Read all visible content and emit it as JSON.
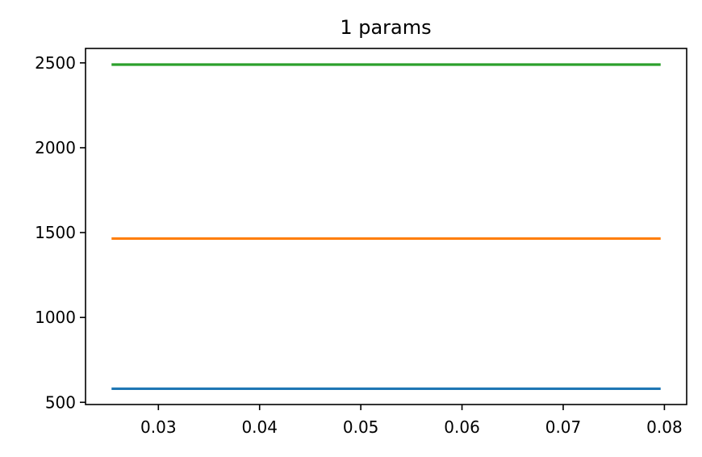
{
  "chart_data": {
    "type": "line",
    "title": "1 params",
    "xlabel": "",
    "ylabel": "",
    "xlim": [
      0.0228,
      0.0822
    ],
    "ylim": [
      487,
      2585
    ],
    "x_ticks": [
      0.03,
      0.04,
      0.05,
      0.06,
      0.07,
      0.08
    ],
    "x_tick_labels": [
      "0.03",
      "0.04",
      "0.05",
      "0.06",
      "0.07",
      "0.08"
    ],
    "y_ticks": [
      500,
      1000,
      1500,
      2000,
      2500
    ],
    "y_tick_labels": [
      "500",
      "1000",
      "1500",
      "2000",
      "2500"
    ],
    "grid": false,
    "legend": false,
    "series": [
      {
        "color": "#1f77b4",
        "x": [
          0.0255,
          0.0795
        ],
        "y": [
          580,
          580
        ]
      },
      {
        "color": "#ff7f0e",
        "x": [
          0.0255,
          0.0795
        ],
        "y": [
          1465,
          1465
        ]
      },
      {
        "color": "#2ca02c",
        "x": [
          0.0255,
          0.0795
        ],
        "y": [
          2490,
          2490
        ]
      }
    ]
  }
}
